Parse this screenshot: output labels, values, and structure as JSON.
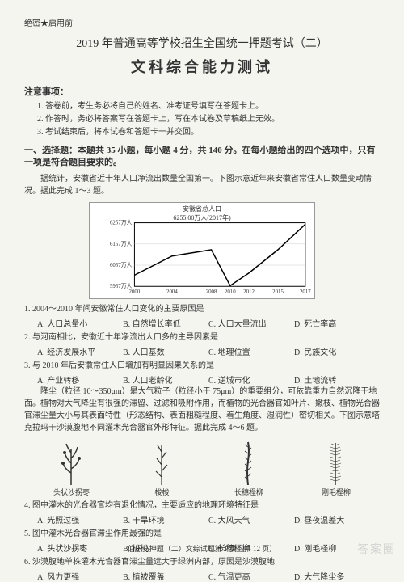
{
  "header": {
    "secret": "绝密★启用前",
    "main_title": "2019 年普通高等学校招生全国统一押题考试（二）",
    "sub_title": "文科综合能力测试"
  },
  "notice": {
    "label": "注意事项：",
    "items": [
      "1. 答卷前，考生务必将自己的姓名、准考证号填写在答题卡上。",
      "2. 作答时，务必将答案写在答题卡上，写在本试卷及草稿纸上无效。",
      "3. 考试结束后，将本试卷和答题卡一并交回。"
    ]
  },
  "section1": {
    "title": "一、选择题：本题共 35 小题，每小题 4 分，共 140 分。在每小题给出的四个选项中，只有一项是符合题目要求的。",
    "passage1": "据统计，安徽省近十年人口净流出数量全国第一。下图示意近年来安徽省常住人口数量变动情况。据此完成 1～3 题。"
  },
  "chart": {
    "type": "line",
    "title_line1": "安徽省总人口",
    "title_line2": "6255.00万人(2017年)",
    "x_labels": [
      "2000",
      "2004",
      "2008",
      "2010",
      "2012",
      "2015",
      "2017"
    ],
    "y_labels": [
      "5957万人",
      "6057万人",
      "6157万人",
      "6257万人"
    ],
    "y_values": [
      5957,
      6057,
      6157,
      6257
    ],
    "x_positions": [
      0,
      0.22,
      0.45,
      0.56,
      0.67,
      0.84,
      1.0
    ],
    "data_points": [
      6010,
      6100,
      6130,
      5960,
      6020,
      6130,
      6250
    ],
    "line_color": "#000000",
    "line_width": 1.5,
    "background_color": "#ffffff",
    "grid_color": "#cccccc",
    "axis_color": "#000000",
    "fontsize": 7
  },
  "questions": [
    {
      "num": "1.",
      "text": "2004～2010 年间安徽常住人口变化的主要原因是",
      "options": [
        "A. 人口总量小",
        "B. 自然增长率低",
        "C. 人口大量流出",
        "D. 死亡率高"
      ]
    },
    {
      "num": "2.",
      "text": "与河南相比，安徽近十年净流出人口多的主导因素是",
      "options": [
        "A. 经济发展水平",
        "B. 人口基数",
        "C. 地理位置",
        "D. 民族文化"
      ]
    },
    {
      "num": "3.",
      "text": "与 2010 年后安徽常住人口增加有明显因果关系的是",
      "options": [
        "A. 产业转移",
        "B. 人口老龄化",
        "C. 逆城市化",
        "D. 土地流转"
      ]
    }
  ],
  "passage2": "降尘（粒径 10～350μm）是大气粒子（粒径小于 75μm）的重要组分，可依靠重力自然沉降于地面。植物对大气降尘有很强的滞留、过滤和吸附作用，而植物的光合器官如叶片、嫩枝、植物光合器官滞尘量大小与其表面特性（形态结构、表面粗糙程度、着生角度、湿润性）密切相关。下图示意塔克拉玛干沙漠腹地不同灌木光合器官外形特征。据此完成 4～6 题。",
  "plants": {
    "items": [
      {
        "name": "头状沙拐枣"
      },
      {
        "name": "梭梭"
      },
      {
        "name": "长穗柽柳"
      },
      {
        "name": "刚毛柽柳"
      }
    ]
  },
  "questions2": [
    {
      "num": "4.",
      "text": "图中灌木的光合器官均有退化情况，主要适应的地理环境特征是",
      "options": [
        "A. 光照过强",
        "B. 干旱环境",
        "C. 大风天气",
        "D. 昼夜温差大"
      ]
    },
    {
      "num": "5.",
      "text": "图中灌木光合器官滞尘作用最强的是",
      "options": [
        "A. 头状沙拐枣",
        "B. 梭梭",
        "C. 长穗柽柳",
        "D. 刚毛柽柳"
      ]
    },
    {
      "num": "6.",
      "text": "沙漠腹地单株灌木光合器官滞尘量远大于绿洲内部，原因是沙漠腹地",
      "options": [
        "A. 风力更强",
        "B. 植被覆盖",
        "C. 气温更高",
        "D. 大气降尘多"
      ]
    }
  ],
  "footer": "伯乐马押题（二）文综试题第 1 页（共 12 页）",
  "watermark": "答案圈"
}
